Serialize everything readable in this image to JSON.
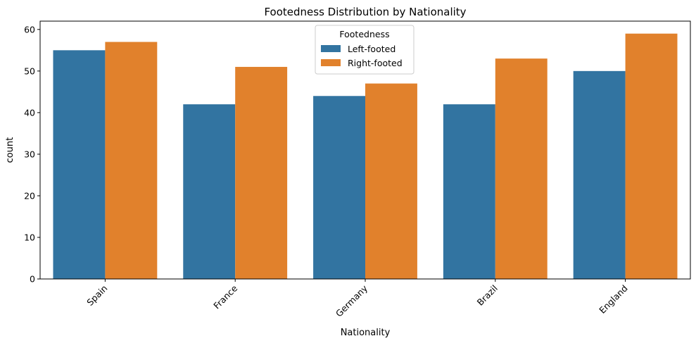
{
  "chart_data": {
    "type": "bar",
    "title": "Footedness Distribution by Nationality",
    "xlabel": "Nationality",
    "ylabel": "count",
    "categories": [
      "Spain",
      "France",
      "Germany",
      "Brazil",
      "England"
    ],
    "series": [
      {
        "name": "Left-footed",
        "values": [
          55,
          42,
          44,
          42,
          50
        ],
        "color": "#3274a1"
      },
      {
        "name": "Right-footed",
        "values": [
          57,
          51,
          47,
          53,
          59
        ],
        "color": "#e1812c"
      }
    ],
    "ylim": [
      0,
      62
    ],
    "yticks": [
      0,
      10,
      20,
      30,
      40,
      50,
      60
    ],
    "grid": false,
    "legend": {
      "title": "Footedness",
      "placement": "top-center"
    }
  }
}
